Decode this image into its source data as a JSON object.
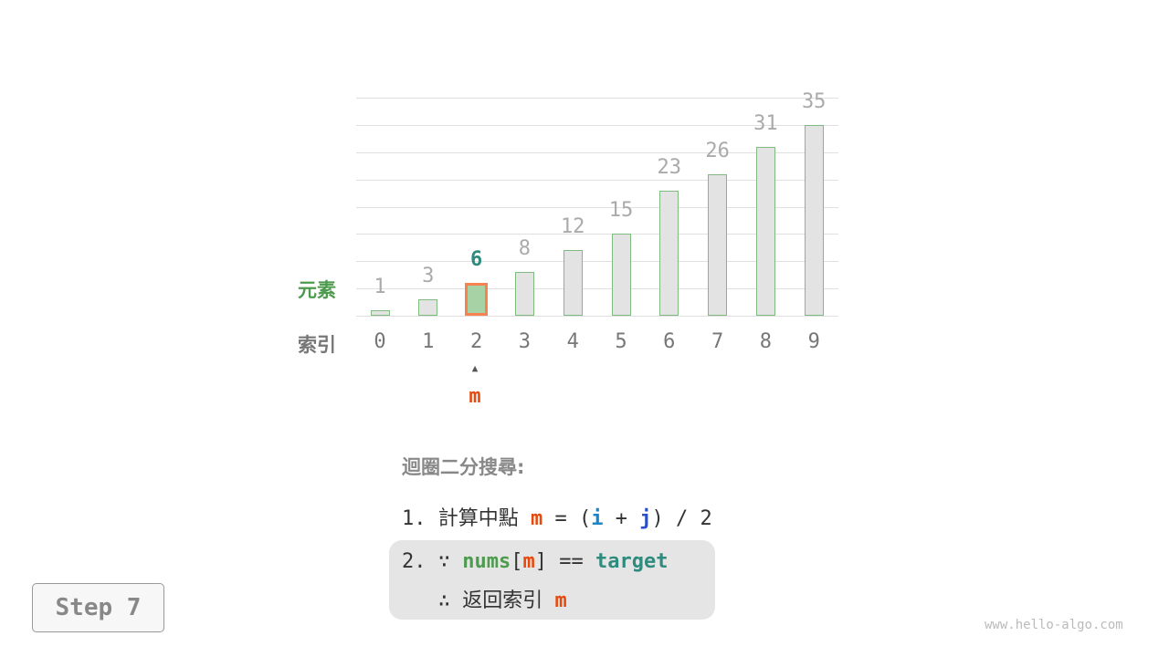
{
  "diagram": {
    "row_label_elements": "元素",
    "row_label_index": "索引",
    "values": [
      1,
      3,
      6,
      8,
      12,
      15,
      23,
      26,
      31,
      35
    ],
    "indices": [
      "0",
      "1",
      "2",
      "3",
      "4",
      "5",
      "6",
      "7",
      "8",
      "9"
    ],
    "highlight_index": 2,
    "pointer_arrow": "▲",
    "pointer_label": "m",
    "colors": {
      "bar_fill": "#e3e3e3",
      "bar_border": "#7fba7f",
      "highlight_fill": "#a6d2a6",
      "highlight_border": "#f5824f",
      "highlight_value": "#2e8b7e",
      "pointer": "#e64a0f"
    }
  },
  "steps": {
    "title": "迴圈二分搜尋:",
    "line1": {
      "num": "1.",
      "text": "計算中點",
      "m": "m",
      "eq": " = (",
      "i": "i",
      "plus": " + ",
      "j": "j",
      "rest": ") / 2"
    },
    "line2": {
      "num": "2.",
      "because": "∵",
      "nums": "nums",
      "lb": "[",
      "m": "m",
      "rb": "]",
      "eq": " == ",
      "target": "target"
    },
    "line3": {
      "therefore": "∴",
      "text": "返回索引",
      "m": "m"
    }
  },
  "step_button": "Step 7",
  "watermark": "www.hello-algo.com"
}
